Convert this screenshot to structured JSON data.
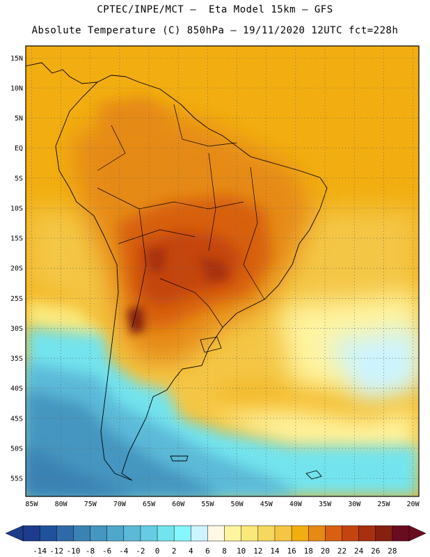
{
  "header": {
    "line1": "CPTEC/INPE/MCT —  Eta Model 15km — GFS",
    "line2": "Absolute Temperature (C) 850hPa — 19/11/2020 12UTC fct=228h"
  },
  "map": {
    "lat_labels": [
      "15N",
      "10N",
      "5N",
      "EQ",
      "5S",
      "10S",
      "15S",
      "20S",
      "25S",
      "30S",
      "35S",
      "40S",
      "45S",
      "50S",
      "55S"
    ],
    "lon_labels": [
      "85W",
      "80W",
      "75W",
      "70W",
      "65W",
      "60W",
      "55W",
      "50W",
      "45W",
      "40W",
      "35W",
      "30W",
      "25W",
      "20W"
    ],
    "extent": {
      "lon": [
        -86,
        -19
      ],
      "lat": [
        -58,
        17
      ]
    }
  },
  "colorbar": {
    "labels": [
      "-14",
      "-12",
      "-10",
      "-8",
      "-6",
      "-4",
      "-2",
      "0",
      "2",
      "4",
      "6",
      "8",
      "10",
      "12",
      "14",
      "16",
      "18",
      "20",
      "22",
      "24",
      "26",
      "28"
    ],
    "colors": [
      "#1e3c8c",
      "#20519c",
      "#2f6aa8",
      "#3b82b4",
      "#4596c0",
      "#4fa8cc",
      "#5cbad8",
      "#66cce4",
      "#73e4ee",
      "#86f6ff",
      "#ccf4ff",
      "#fff8e4",
      "#fff4a0",
      "#fbe87a",
      "#f6d860",
      "#f4c644",
      "#f2ae10",
      "#e68a14",
      "#d86010",
      "#c44410",
      "#a83010",
      "#862010",
      "#6a0c20"
    ]
  }
}
